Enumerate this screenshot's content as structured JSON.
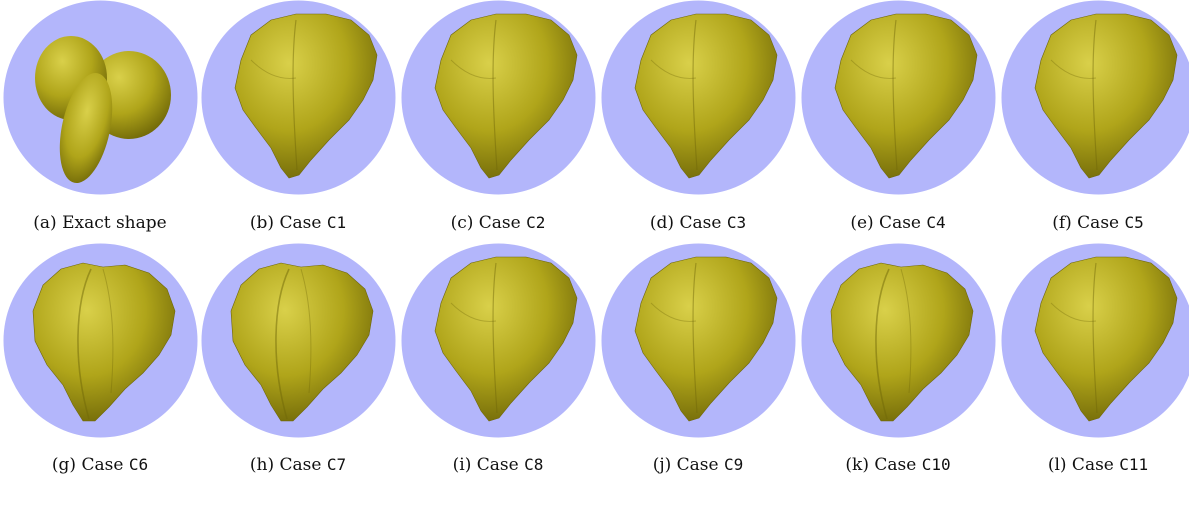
{
  "colors": {
    "background_disc": "#b3b6fb",
    "shape_fill": "#b0a51a",
    "shape_highlight": "#d9d04a",
    "shape_shadow": "#6f6708"
  },
  "panels": [
    {
      "prefix": "(a) Exact shape",
      "code": "",
      "shape": "exact"
    },
    {
      "prefix": "(b) Case ",
      "code": "C1",
      "shape": "rough"
    },
    {
      "prefix": "(c) Case ",
      "code": "C2",
      "shape": "rough"
    },
    {
      "prefix": "(d) Case ",
      "code": "C3",
      "shape": "rough"
    },
    {
      "prefix": "(e) Case ",
      "code": "C4",
      "shape": "rough"
    },
    {
      "prefix": "(f) Case ",
      "code": "C5",
      "shape": "rough"
    },
    {
      "prefix": "(g) Case ",
      "code": "C6",
      "shape": "lobed"
    },
    {
      "prefix": "(h) Case ",
      "code": "C7",
      "shape": "lobed"
    },
    {
      "prefix": "(i) Case ",
      "code": "C8",
      "shape": "rough"
    },
    {
      "prefix": "(j) Case ",
      "code": "C9",
      "shape": "rough"
    },
    {
      "prefix": "(k) Case ",
      "code": "C10",
      "shape": "lobed"
    },
    {
      "prefix": "(l) Case ",
      "code": "C11",
      "shape": "rough"
    }
  ]
}
